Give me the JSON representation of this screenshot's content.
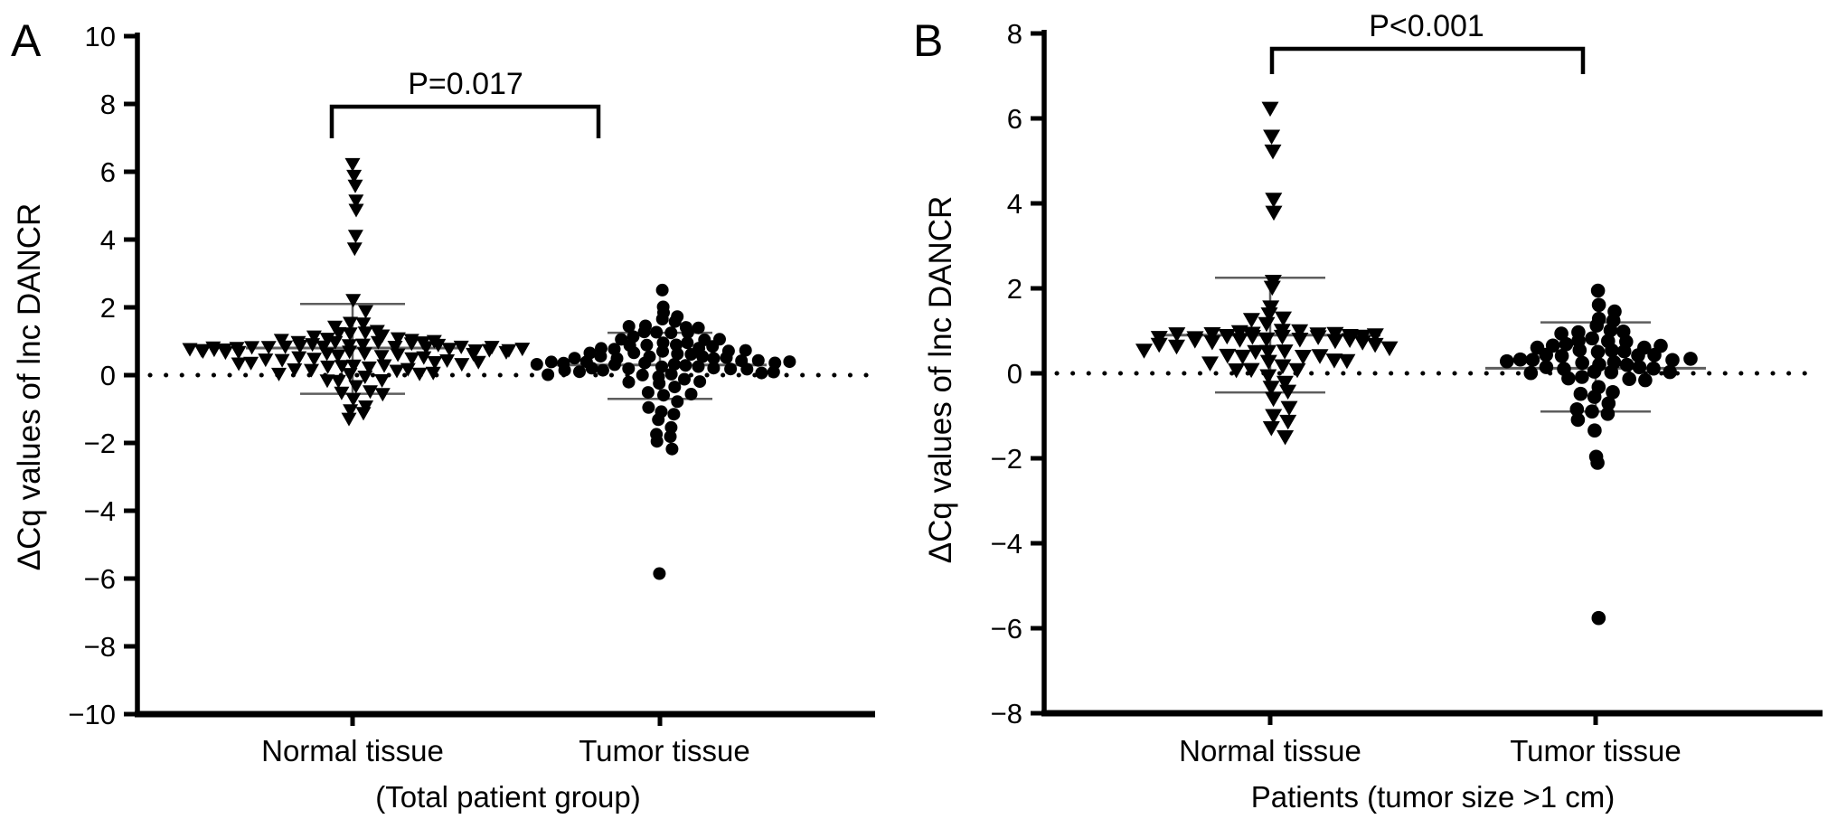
{
  "figure": {
    "background": "#ffffff",
    "ink_color": "#000000",
    "errorbar_color": "#5e5e5e"
  },
  "chart_data": [
    {
      "panel": "A",
      "type": "scatter",
      "style": "beeswarm-dot-plot",
      "ylabel": "ΔCq values of lnc DANCR",
      "xlabel_note": "(Total patient group)",
      "categories": [
        "Normal tissue",
        "Tumor tissue"
      ],
      "ylim": [
        -10,
        10
      ],
      "yticks": [
        10,
        8,
        6,
        4,
        2,
        0,
        -2,
        -4,
        -6,
        -8,
        -10
      ],
      "zero_line": "dotted",
      "grid": false,
      "significance": {
        "label": "P=0.017",
        "between": [
          "Normal tissue",
          "Tumor tissue"
        ]
      },
      "series": [
        {
          "name": "Normal tissue",
          "marker": "triangle-down",
          "mean": 0.8,
          "err_lo": -0.55,
          "err_hi": 2.1,
          "values": [
            6.3,
            5.9,
            5.55,
            5.15,
            4.95,
            4.15,
            3.7,
            2.2,
            1.95,
            1.6,
            1.5,
            1.4,
            1.35,
            1.3,
            1.25,
            1.2,
            1.2,
            1.15,
            1.1,
            1.1,
            1.05,
            1.05,
            1.0,
            1.0,
            1.0,
            0.95,
            0.95,
            0.95,
            0.95,
            0.9,
            0.9,
            0.9,
            0.9,
            0.9,
            0.9,
            0.85,
            0.85,
            0.85,
            0.85,
            0.85,
            0.8,
            0.8,
            0.8,
            0.8,
            0.8,
            0.8,
            0.8,
            0.8,
            0.75,
            0.75,
            0.75,
            0.75,
            0.75,
            0.7,
            0.7,
            0.7,
            0.7,
            0.65,
            0.65,
            0.65,
            0.6,
            0.6,
            0.6,
            0.55,
            0.55,
            0.5,
            0.5,
            0.5,
            0.45,
            0.45,
            0.4,
            0.4,
            0.4,
            0.35,
            0.35,
            0.3,
            0.3,
            0.3,
            0.25,
            0.25,
            0.2,
            0.2,
            0.15,
            0.15,
            0.1,
            0.1,
            0.05,
            0.0,
            0.0,
            -0.1,
            -0.15,
            -0.2,
            -0.3,
            -0.4,
            -0.5,
            -0.6,
            -0.7,
            -0.85,
            -1.0,
            -1.15,
            -1.3
          ]
        },
        {
          "name": "Tumor tissue",
          "marker": "circle",
          "mean": 0.3,
          "err_lo": -0.7,
          "err_hi": 1.25,
          "values": [
            2.45,
            2.0,
            1.9,
            1.75,
            1.6,
            1.55,
            1.5,
            1.45,
            1.4,
            1.35,
            1.3,
            1.3,
            1.25,
            1.2,
            1.15,
            1.1,
            1.05,
            1.0,
            0.95,
            0.95,
            0.9,
            0.9,
            0.85,
            0.85,
            0.8,
            0.8,
            0.75,
            0.75,
            0.7,
            0.7,
            0.65,
            0.65,
            0.6,
            0.6,
            0.6,
            0.55,
            0.55,
            0.5,
            0.5,
            0.5,
            0.45,
            0.45,
            0.45,
            0.4,
            0.4,
            0.4,
            0.35,
            0.35,
            0.35,
            0.3,
            0.3,
            0.3,
            0.3,
            0.25,
            0.25,
            0.25,
            0.2,
            0.2,
            0.2,
            0.15,
            0.15,
            0.15,
            0.1,
            0.1,
            0.05,
            0.05,
            0.0,
            0.0,
            -0.05,
            -0.1,
            -0.15,
            -0.2,
            -0.3,
            -0.35,
            -0.45,
            -0.55,
            -0.65,
            -0.8,
            -0.9,
            -1.05,
            -1.2,
            -1.35,
            -1.5,
            -1.7,
            -1.85,
            -2.0,
            -2.15,
            -5.8
          ]
        }
      ]
    },
    {
      "panel": "B",
      "type": "scatter",
      "style": "beeswarm-dot-plot",
      "ylabel": "ΔCq values of lnc DANCR",
      "xlabel_note": "Patients (tumor size >1 cm)",
      "categories": [
        "Normal tissue",
        "Tumor tissue"
      ],
      "ylim": [
        -8,
        8
      ],
      "yticks": [
        8,
        6,
        4,
        2,
        0,
        -2,
        -4,
        -6,
        -8
      ],
      "zero_line": "dotted",
      "grid": false,
      "significance": {
        "label": "P<0.001",
        "between": [
          "Normal tissue",
          "Tumor tissue"
        ]
      },
      "series": [
        {
          "name": "Normal tissue",
          "marker": "triangle-down",
          "mean": 0.9,
          "err_lo": -0.45,
          "err_hi": 2.25,
          "values": [
            6.3,
            5.6,
            5.2,
            4.1,
            3.85,
            2.2,
            2.0,
            1.55,
            1.45,
            1.35,
            1.25,
            1.15,
            1.05,
            1.0,
            1.0,
            0.95,
            0.95,
            0.95,
            0.95,
            0.9,
            0.9,
            0.9,
            0.9,
            0.9,
            0.9,
            0.9,
            0.85,
            0.85,
            0.85,
            0.85,
            0.85,
            0.85,
            0.85,
            0.8,
            0.8,
            0.8,
            0.75,
            0.75,
            0.7,
            0.7,
            0.65,
            0.6,
            0.6,
            0.55,
            0.5,
            0.5,
            0.45,
            0.45,
            0.4,
            0.4,
            0.35,
            0.3,
            0.3,
            0.25,
            0.2,
            0.15,
            0.1,
            0.05,
            -0.05,
            -0.15,
            -0.3,
            -0.45,
            -0.6,
            -0.75,
            -0.95,
            -1.15,
            -1.3,
            -1.45
          ]
        },
        {
          "name": "Tumor tissue",
          "marker": "circle",
          "mean": 0.12,
          "err_lo": -0.9,
          "err_hi": 1.2,
          "values": [
            1.9,
            1.6,
            1.5,
            1.3,
            1.2,
            1.1,
            1.05,
            1.0,
            0.95,
            0.9,
            0.85,
            0.8,
            0.75,
            0.7,
            0.7,
            0.65,
            0.65,
            0.6,
            0.6,
            0.55,
            0.55,
            0.5,
            0.5,
            0.45,
            0.45,
            0.4,
            0.4,
            0.35,
            0.35,
            0.3,
            0.3,
            0.3,
            0.25,
            0.25,
            0.2,
            0.2,
            0.15,
            0.15,
            0.1,
            0.1,
            0.05,
            0.05,
            0.0,
            0.0,
            -0.05,
            -0.1,
            -0.15,
            -0.2,
            -0.3,
            -0.4,
            -0.5,
            -0.6,
            -0.7,
            -0.8,
            -0.9,
            -1.0,
            -1.1,
            -1.3,
            -1.95,
            -2.15,
            -5.78
          ]
        }
      ]
    }
  ]
}
